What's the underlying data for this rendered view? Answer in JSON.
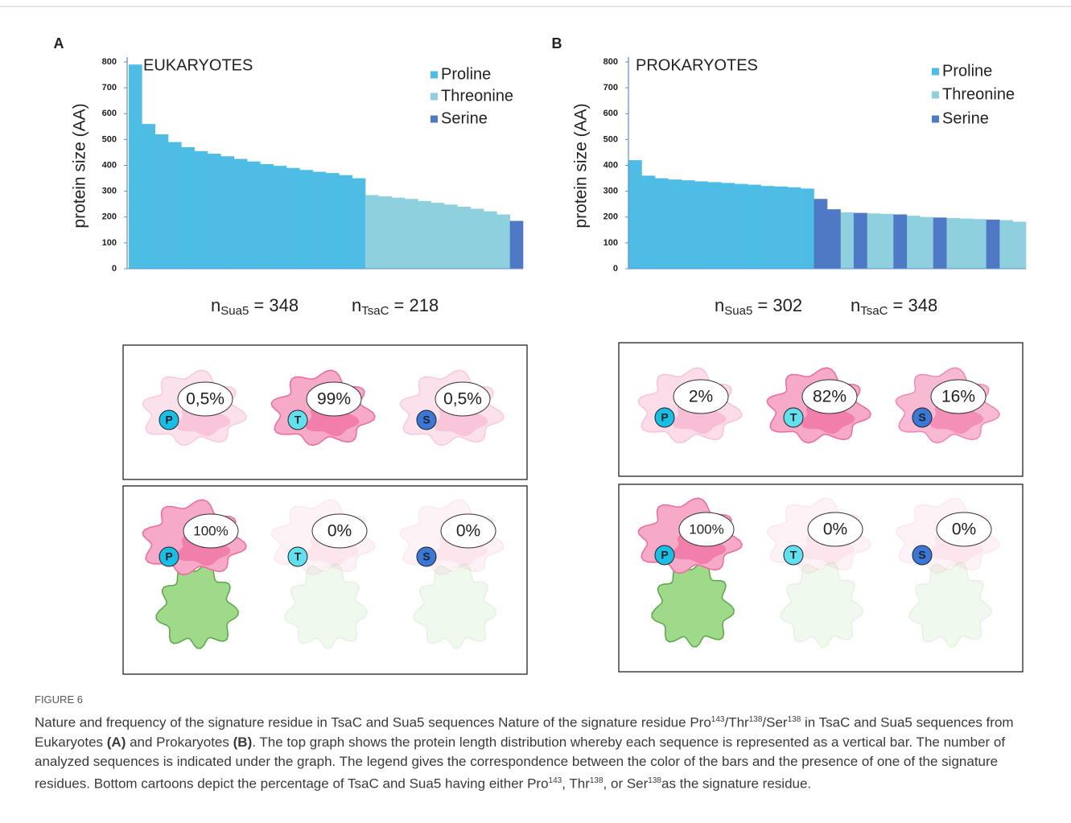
{
  "chart_data": [
    {
      "type": "bar",
      "panel_label": "A",
      "title": "EUKARYOTES",
      "y_label": "protein size (AA)",
      "categories": [
        null,
        null,
        null,
        null,
        null,
        null,
        null,
        null,
        null,
        null,
        null,
        null,
        null,
        null,
        null,
        null,
        null,
        null,
        null,
        null,
        null,
        null,
        null,
        null,
        null,
        null,
        null,
        null,
        null,
        null
      ],
      "series": [
        {
          "name": "Proline",
          "color": "#4dbde6",
          "values": [
            790,
            560,
            520,
            490,
            470,
            455,
            445,
            435,
            425,
            415,
            405,
            398,
            390,
            382,
            375,
            370,
            362,
            350,
            null,
            null,
            null,
            null,
            null,
            null,
            null,
            null,
            null,
            null,
            null,
            null
          ]
        },
        {
          "name": "Threonine",
          "color": "#8fd0de",
          "values": [
            null,
            null,
            null,
            null,
            null,
            null,
            null,
            null,
            null,
            null,
            null,
            null,
            null,
            null,
            null,
            null,
            null,
            null,
            285,
            280,
            275,
            270,
            262,
            255,
            248,
            240,
            232,
            222,
            210,
            null
          ]
        },
        {
          "name": "Serine",
          "color": "#4e79c4",
          "values": [
            null,
            null,
            null,
            null,
            null,
            null,
            null,
            null,
            null,
            null,
            null,
            null,
            null,
            null,
            null,
            null,
            null,
            null,
            null,
            null,
            null,
            null,
            null,
            null,
            null,
            null,
            null,
            null,
            null,
            185
          ]
        }
      ],
      "ylim": [
        0,
        800
      ],
      "yticks": [
        0,
        100,
        200,
        300,
        400,
        500,
        600,
        700,
        800
      ],
      "counts": [
        {
          "prefix": "n",
          "subscript": "Sua5",
          "suffix": " = 348"
        },
        {
          "prefix": "n",
          "subscript": "TsaC",
          "suffix": " = 218"
        }
      ]
    },
    {
      "type": "bar",
      "panel_label": "B",
      "title": "PROKARYOTES",
      "y_label": "protein size (AA)",
      "categories": [
        null,
        null,
        null,
        null,
        null,
        null,
        null,
        null,
        null,
        null,
        null,
        null,
        null,
        null,
        null,
        null,
        null,
        null,
        null,
        null,
        null,
        null,
        null,
        null,
        null,
        null,
        null,
        null,
        null,
        null
      ],
      "series": [
        {
          "name": "Proline",
          "color": "#4dbde6",
          "values": [
            420,
            360,
            350,
            345,
            342,
            338,
            335,
            332,
            328,
            325,
            320,
            318,
            315,
            310,
            null,
            null,
            null,
            null,
            null,
            null,
            null,
            null,
            null,
            null,
            null,
            null,
            null,
            null,
            null,
            null
          ]
        },
        {
          "name": "Threonine",
          "color": "#8fd0de",
          "values": [
            null,
            null,
            null,
            null,
            null,
            null,
            null,
            null,
            null,
            null,
            null,
            null,
            null,
            null,
            null,
            null,
            218,
            null,
            214,
            212,
            null,
            205,
            200,
            null,
            196,
            194,
            192,
            null,
            188,
            182
          ]
        },
        {
          "name": "Serine",
          "color": "#4e79c4",
          "values": [
            null,
            null,
            null,
            null,
            null,
            null,
            null,
            null,
            null,
            null,
            null,
            null,
            null,
            null,
            270,
            230,
            null,
            216,
            null,
            null,
            210,
            null,
            null,
            198,
            null,
            null,
            null,
            190,
            null,
            null
          ]
        }
      ],
      "ylim": [
        0,
        800
      ],
      "yticks": [
        0,
        100,
        200,
        300,
        400,
        500,
        600,
        700,
        800
      ],
      "counts": [
        {
          "prefix": "n",
          "subscript": "Sua5",
          "suffix": " = 302"
        },
        {
          "prefix": "n",
          "subscript": "TsaC",
          "suffix": " = 348"
        }
      ]
    }
  ],
  "cartoons": [
    {
      "rows": [
        [
          {
            "residue": "P",
            "percent": "0,5%"
          },
          {
            "residue": "T",
            "percent": "99%"
          },
          {
            "residue": "S",
            "percent": "0,5%"
          }
        ],
        [
          {
            "residue": "P",
            "percent": "100%"
          },
          {
            "residue": "T",
            "percent": "0%"
          },
          {
            "residue": "S",
            "percent": "0%"
          }
        ]
      ]
    },
    {
      "rows": [
        [
          {
            "residue": "P",
            "percent": "2%"
          },
          {
            "residue": "T",
            "percent": "82%"
          },
          {
            "residue": "S",
            "percent": "16%"
          }
        ],
        [
          {
            "residue": "P",
            "percent": "100%"
          },
          {
            "residue": "T",
            "percent": "0%"
          },
          {
            "residue": "S",
            "percent": "0%"
          }
        ]
      ]
    }
  ],
  "caption": {
    "label": "FIGURE 6",
    "segments": [
      {
        "text": "Nature and frequency of the signature residue in TsaC and Sua5 sequences Nature of the signature residue Pro"
      },
      {
        "text": "143",
        "style": "sup"
      },
      {
        "text": "/Thr"
      },
      {
        "text": "138",
        "style": "sup"
      },
      {
        "text": "/Ser"
      },
      {
        "text": "138",
        "style": "sup"
      },
      {
        "text": " in TsaC and Sua5 sequences from Eukaryotes "
      },
      {
        "text": "(A)",
        "style": "bold"
      },
      {
        "text": " and Prokaryotes "
      },
      {
        "text": "(B)",
        "style": "bold"
      },
      {
        "text": ". The top graph shows the protein length distribution whereby each sequence is represented as a vertical bar. The number of analyzed sequences is indicated under the graph. The legend gives the correspondence between the color of the bars and the presence of one of the signature residues. Bottom cartoons depict the percentage of TsaC and Sua5 having either Pro"
      },
      {
        "text": "143",
        "style": "sup"
      },
      {
        "text": ", Thr"
      },
      {
        "text": "138",
        "style": "sup"
      },
      {
        "text": ", or Ser"
      },
      {
        "text": "138",
        "style": "sup"
      },
      {
        "text": "as the signature residue."
      }
    ]
  }
}
